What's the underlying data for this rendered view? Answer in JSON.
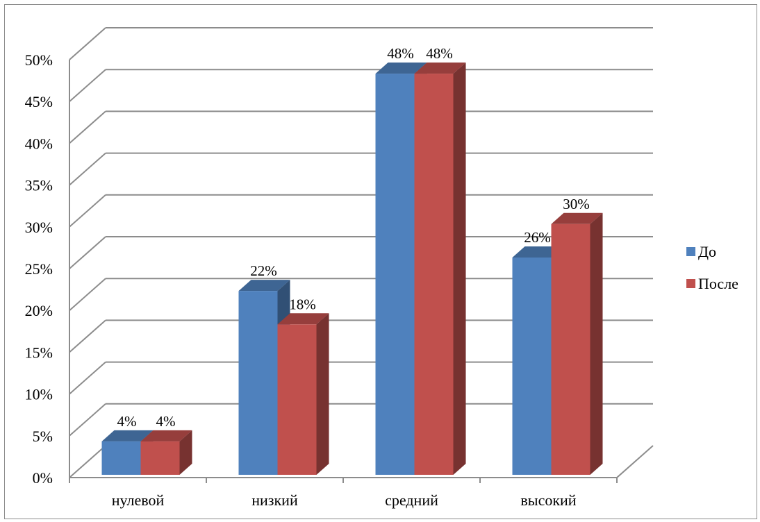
{
  "chart_data": {
    "type": "bar",
    "title": "",
    "xlabel": "",
    "ylabel": "",
    "categories": [
      "нулевой",
      "низкий",
      "средний",
      "высокий"
    ],
    "series": [
      {
        "name": "До",
        "values": [
          4,
          22,
          48,
          26
        ],
        "labels": [
          "4%",
          "22%",
          "48%",
          "26%"
        ],
        "color": "#4f81bd"
      },
      {
        "name": "После",
        "values": [
          4,
          18,
          48,
          30
        ],
        "labels": [
          "4%",
          "18%",
          "48%",
          "30%"
        ],
        "color": "#c0504d"
      }
    ],
    "ylim": [
      0,
      50
    ],
    "yticks": [
      0,
      5,
      10,
      15,
      20,
      25,
      30,
      35,
      40,
      45,
      50
    ],
    "ytick_labels": [
      "0%",
      "5%",
      "10%",
      "15%",
      "20%",
      "25%",
      "30%",
      "35%",
      "40%",
      "45%",
      "50%"
    ],
    "grid": true,
    "legend_position": "right",
    "style": "3d-clustered-column"
  }
}
